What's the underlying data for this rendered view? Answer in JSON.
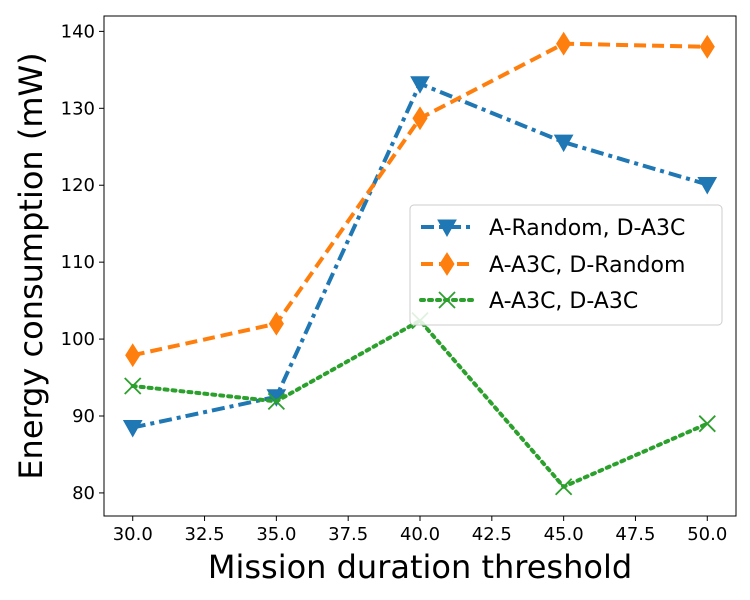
{
  "chart_data": {
    "type": "line",
    "xlabel": "Mission duration threshold",
    "ylabel": "Energy consumption (mW)",
    "x": [
      30.0,
      35.0,
      40.0,
      45.0,
      50.0
    ],
    "xlim": [
      29.0,
      51.0
    ],
    "ylim": [
      77,
      142
    ],
    "xticks": [
      "30.0",
      "32.5",
      "35.0",
      "37.5",
      "40.0",
      "42.5",
      "45.0",
      "47.5",
      "50.0"
    ],
    "yticks": [
      "80",
      "90",
      "100",
      "110",
      "120",
      "130",
      "140"
    ],
    "grid": false,
    "legend_position": "center-right",
    "series": [
      {
        "name": "A-Random, D-A3C",
        "values": [
          88.5,
          92.5,
          133.2,
          125.6,
          120.1
        ],
        "color": "#1f77b4",
        "linestyle": "dashdot",
        "marker": "triangle-down"
      },
      {
        "name": "A-A3C, D-Random",
        "values": [
          97.9,
          102.0,
          128.7,
          138.4,
          138.0
        ],
        "color": "#ff7f0e",
        "linestyle": "dashed",
        "marker": "thin-diamond"
      },
      {
        "name": "A-A3C, D-A3C",
        "values": [
          93.9,
          91.9,
          102.4,
          80.8,
          89.0
        ],
        "color": "#2ca02c",
        "linestyle": "dotted",
        "marker": "x"
      }
    ]
  }
}
